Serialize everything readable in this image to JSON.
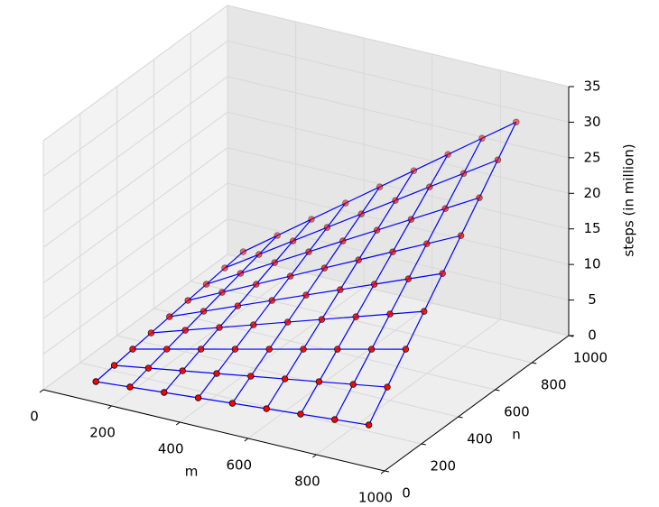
{
  "chart_data": {
    "type": "surface3d",
    "xlabel": "m",
    "ylabel": "n",
    "zlabel": "steps (in million)",
    "x": [
      100,
      200,
      300,
      400,
      500,
      600,
      700,
      800,
      900
    ],
    "y": [
      100,
      200,
      300,
      400,
      500,
      600,
      700,
      800,
      900
    ],
    "z": [
      [
        0.38,
        0.76,
        1.14,
        1.52,
        1.9,
        2.28,
        2.66,
        3.04,
        3.42
      ],
      [
        0.76,
        1.52,
        2.28,
        3.04,
        3.8,
        4.56,
        5.32,
        6.08,
        6.84
      ],
      [
        1.14,
        2.28,
        3.42,
        4.56,
        5.7,
        6.84,
        7.98,
        9.12,
        10.26
      ],
      [
        1.52,
        3.04,
        4.56,
        6.08,
        7.6,
        9.12,
        10.64,
        12.16,
        13.68
      ],
      [
        1.9,
        3.8,
        5.7,
        7.6,
        9.5,
        11.4,
        13.3,
        15.2,
        17.1
      ],
      [
        2.28,
        4.56,
        6.84,
        9.12,
        11.4,
        13.68,
        15.96,
        18.24,
        20.52
      ],
      [
        2.66,
        5.32,
        7.98,
        10.64,
        13.3,
        15.96,
        18.62,
        21.28,
        23.94
      ],
      [
        3.04,
        6.08,
        9.12,
        12.16,
        15.2,
        18.24,
        21.28,
        24.32,
        27.36
      ],
      [
        3.42,
        6.84,
        10.26,
        13.68,
        17.1,
        20.52,
        23.94,
        27.36,
        30.78
      ]
    ],
    "xlim": [
      0,
      1000
    ],
    "ylim": [
      0,
      1000
    ],
    "zlim": [
      0,
      35
    ],
    "xticks": [
      0,
      200,
      400,
      600,
      800,
      1000
    ],
    "yticks": [
      0,
      200,
      400,
      600,
      800,
      1000
    ],
    "zticks": [
      0,
      5,
      10,
      15,
      20,
      25,
      30,
      35
    ],
    "line_color": "#0000ff",
    "marker_color": "#ff0000",
    "grid": true
  }
}
